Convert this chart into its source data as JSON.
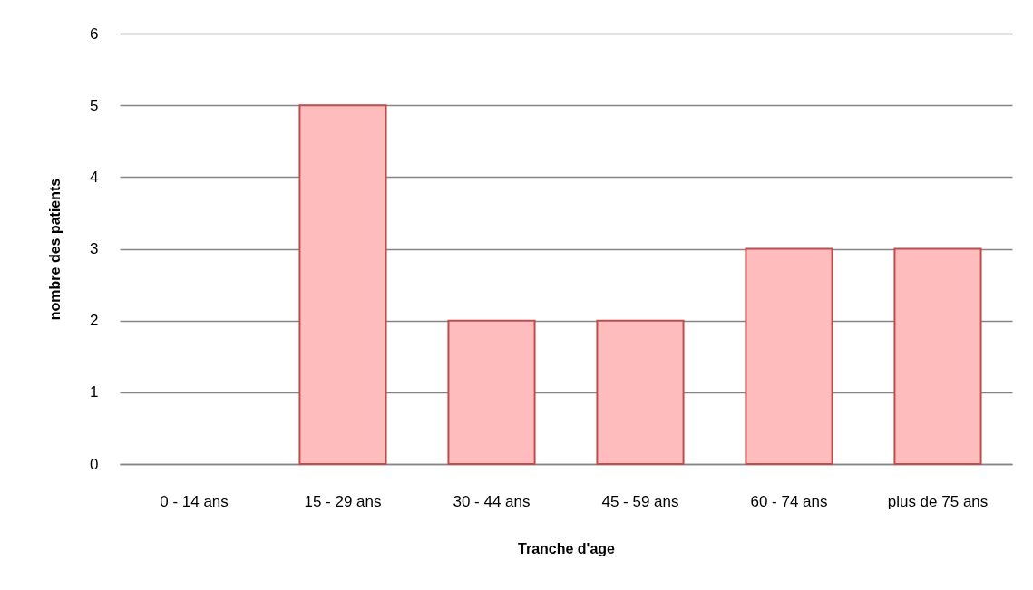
{
  "chart_data": {
    "type": "bar",
    "xlabel": "Tranche d'age",
    "ylabel": "nombre des patients",
    "categories": [
      "0 - 14 ans",
      "15 - 29 ans",
      "30 - 44 ans",
      "45 - 59 ans",
      "60 - 74 ans",
      "plus de 75 ans"
    ],
    "values": [
      0,
      5,
      2,
      2,
      3,
      3
    ],
    "color": "#ffbcbc",
    "ylim": [
      0,
      6
    ],
    "yticks": [
      0,
      1,
      2,
      3,
      4,
      5,
      6
    ],
    "grid": "y"
  }
}
